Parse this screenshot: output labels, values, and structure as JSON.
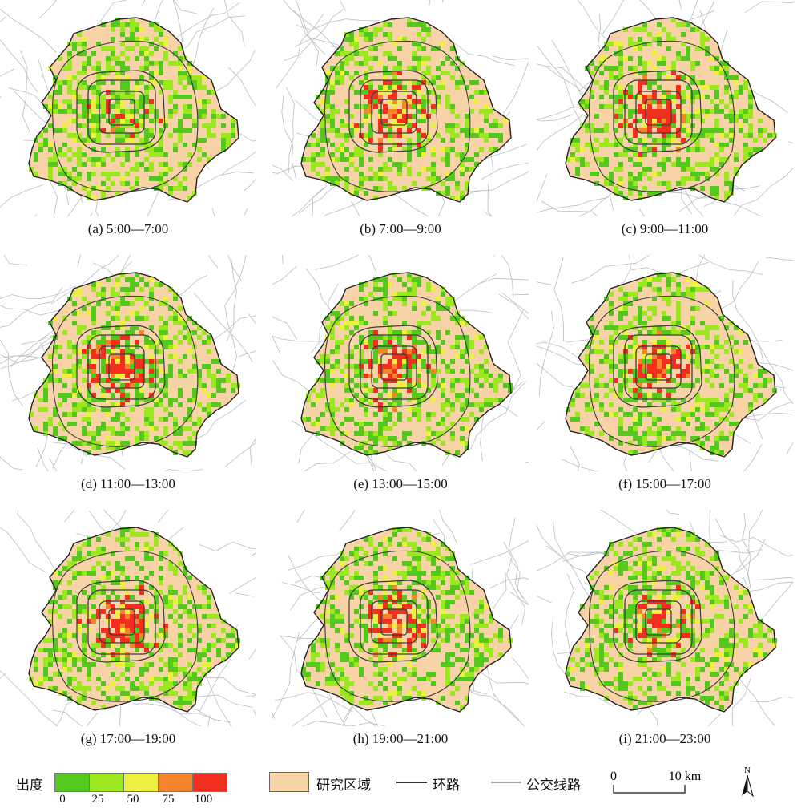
{
  "legend": {
    "title": "出度",
    "class_colors": [
      "#55c81e",
      "#9be81e",
      "#eef040",
      "#f5852a",
      "#f22f1e"
    ],
    "ticks": [
      "0",
      "25",
      "50",
      "75",
      "100"
    ],
    "study_area_label": "研究区域",
    "ring_road_label": "环路",
    "bus_line_label": "公交线路",
    "study_area_color": "#f9d3a8",
    "ring_road_color": "#333333",
    "bus_line_color": "#9aa5ab"
  },
  "scalebar": {
    "start": "0",
    "end": "10 km"
  },
  "north_arrow": "N",
  "panels": [
    {
      "caption": "(a) 5:00—7:00",
      "intensity": 0.25
    },
    {
      "caption": "(b) 7:00—9:00",
      "intensity": 0.85
    },
    {
      "caption": "(c) 9:00—11:00",
      "intensity": 0.8
    },
    {
      "caption": "(d) 11:00—13:00",
      "intensity": 0.9
    },
    {
      "caption": "(e) 13:00—15:00",
      "intensity": 0.75
    },
    {
      "caption": "(f) 15:00—17:00",
      "intensity": 0.8
    },
    {
      "caption": "(g) 17:00—19:00",
      "intensity": 1.0
    },
    {
      "caption": "(h) 19:00—21:00",
      "intensity": 0.9
    },
    {
      "caption": "(i) 21:00—23:00",
      "intensity": 0.6
    }
  ]
}
